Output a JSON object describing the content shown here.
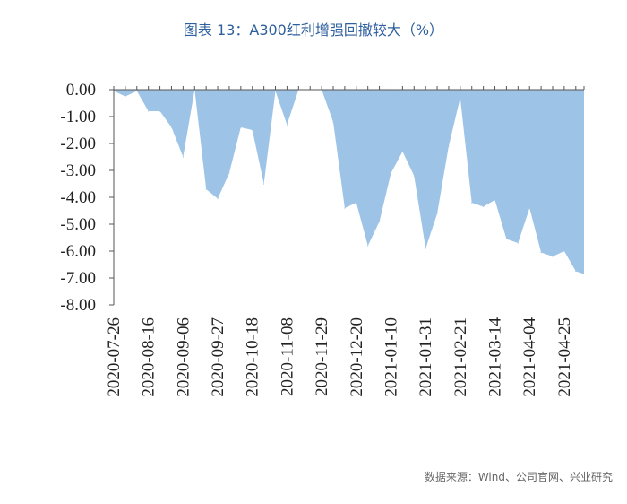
{
  "title": "图表 13：A300红利增强回撤较大（%）",
  "source": "数据来源：Wind、公司官网、兴业研究",
  "colors": {
    "area": "#9dc3e6",
    "axis": "#555555",
    "title": "#2e5f9e"
  },
  "chart_data": {
    "type": "area",
    "title": "图表 13：A300红利增强回撤较大（%）",
    "xlabel": "",
    "ylabel": "",
    "ylim": [
      -8,
      0
    ],
    "yticks": [
      "0.00",
      "-1.00",
      "-2.00",
      "-3.00",
      "-4.00",
      "-5.00",
      "-6.00",
      "-7.00",
      "-8.00"
    ],
    "xticks": [
      "2020-07-26",
      "2020-08-16",
      "2020-09-06",
      "2020-09-27",
      "2020-10-18",
      "2020-11-08",
      "2020-11-29",
      "2020-12-20",
      "2021-01-10",
      "2021-01-31",
      "2021-02-21",
      "2021-03-14",
      "2021-04-04",
      "2021-04-25"
    ],
    "grid": false,
    "series": [
      {
        "x": [
          "2020-07-26",
          "2020-08-02",
          "2020-08-09",
          "2020-08-16",
          "2020-08-23",
          "2020-08-30",
          "2020-09-06",
          "2020-09-13",
          "2020-09-20",
          "2020-09-27",
          "2020-10-04",
          "2020-10-11",
          "2020-10-18",
          "2020-10-25",
          "2020-11-01",
          "2020-11-08",
          "2020-11-15",
          "2020-11-22",
          "2020-11-29",
          "2020-12-06",
          "2020-12-13",
          "2020-12-20",
          "2020-12-27",
          "2021-01-03",
          "2021-01-10",
          "2021-01-17",
          "2021-01-24",
          "2021-01-31",
          "2021-02-07",
          "2021-02-14",
          "2021-02-21",
          "2021-02-28",
          "2021-03-07",
          "2021-03-14",
          "2021-03-21",
          "2021-03-28",
          "2021-04-04",
          "2021-04-11",
          "2021-04-18",
          "2021-04-25",
          "2021-05-02",
          "2021-05-07"
        ],
        "values": [
          -0.05,
          -0.25,
          -0.05,
          -0.8,
          -0.8,
          -1.4,
          -2.5,
          0.0,
          -3.7,
          -4.05,
          -3.1,
          -1.4,
          -1.5,
          -3.5,
          -0.05,
          -1.3,
          0.0,
          0.0,
          0.0,
          -1.2,
          -4.4,
          -4.2,
          -5.8,
          -4.9,
          -3.1,
          -2.3,
          -3.2,
          -5.9,
          -4.6,
          -2.1,
          -0.3,
          -4.2,
          -4.35,
          -4.1,
          -5.55,
          -5.7,
          -4.4,
          -6.05,
          -6.2,
          -6.0,
          -6.75,
          -6.85
        ]
      }
    ]
  }
}
